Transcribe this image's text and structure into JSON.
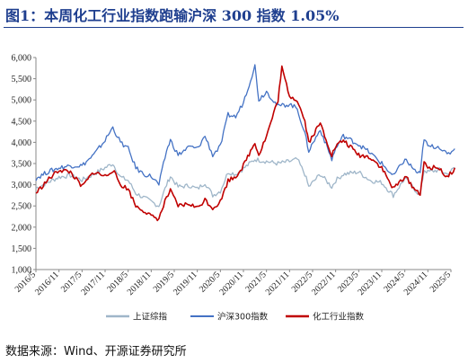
{
  "title": "图1：本周化工行业指数跑输沪深 300 指数 1.05%",
  "source": "数据来源：Wind、开源证券研究所",
  "chart_data": {
    "type": "line",
    "title": "图1：本周化工行业指数跑输沪深 300 指数 1.05%",
    "xlabel": "",
    "ylabel": "",
    "ylim": [
      1000,
      6000
    ],
    "yticks": [
      1000,
      1500,
      2000,
      2500,
      3000,
      3500,
      4000,
      4500,
      5000,
      5500,
      6000
    ],
    "ytick_labels": [
      "1,000",
      "1,500",
      "2,000",
      "2,500",
      "3,000",
      "3,500",
      "4,000",
      "4,500",
      "5,000",
      "5,500",
      "6,000"
    ],
    "xtick_labels": [
      "2016/5",
      "2016/11",
      "2017/5",
      "2017/11",
      "2018/5",
      "2018/11",
      "2019/5",
      "2019/11",
      "2020/5",
      "2020/11",
      "2021/5",
      "2021/11",
      "2022/5",
      "2022/11",
      "2023/5",
      "2023/11",
      "2024/5",
      "2024/11",
      "2025/5"
    ],
    "legend_position": "bottom",
    "grid": false,
    "series": [
      {
        "name": "上证综指",
        "color": "#9fb6c9",
        "points": [
          [
            "2016/5",
            2920
          ],
          [
            "2016/8",
            3050
          ],
          [
            "2016/11",
            3180
          ],
          [
            "2017/2",
            3220
          ],
          [
            "2017/5",
            3110
          ],
          [
            "2017/8",
            3250
          ],
          [
            "2017/11",
            3400
          ],
          [
            "2018/1",
            3500
          ],
          [
            "2018/3",
            3180
          ],
          [
            "2018/5",
            3100
          ],
          [
            "2018/7",
            2800
          ],
          [
            "2018/9",
            2700
          ],
          [
            "2018/11",
            2600
          ],
          [
            "2019/1",
            2500
          ],
          [
            "2019/3",
            3000
          ],
          [
            "2019/4",
            3200
          ],
          [
            "2019/6",
            2950
          ],
          [
            "2019/9",
            2980
          ],
          [
            "2019/11",
            2900
          ],
          [
            "2020/1",
            3050
          ],
          [
            "2020/3",
            2750
          ],
          [
            "2020/5",
            2850
          ],
          [
            "2020/7",
            3300
          ],
          [
            "2020/9",
            3250
          ],
          [
            "2020/11",
            3380
          ],
          [
            "2021/2",
            3600
          ],
          [
            "2021/5",
            3550
          ],
          [
            "2021/8",
            3500
          ],
          [
            "2021/11",
            3550
          ],
          [
            "2022/1",
            3600
          ],
          [
            "2022/3",
            3250
          ],
          [
            "2022/4",
            2950
          ],
          [
            "2022/7",
            3250
          ],
          [
            "2022/10",
            2950
          ],
          [
            "2022/11",
            3100
          ],
          [
            "2023/1",
            3250
          ],
          [
            "2023/5",
            3300
          ],
          [
            "2023/8",
            3100
          ],
          [
            "2023/11",
            3050
          ],
          [
            "2024/2",
            2750
          ],
          [
            "2024/5",
            3150
          ],
          [
            "2024/8",
            2850
          ],
          [
            "2024/9",
            2750
          ],
          [
            "2024/10",
            3350
          ],
          [
            "2024/11",
            3300
          ],
          [
            "2025/2",
            3350
          ],
          [
            "2025/4",
            3250
          ],
          [
            "2025/6",
            3400
          ]
        ]
      },
      {
        "name": "沪深300指数",
        "color": "#4472c4",
        "points": [
          [
            "2016/5",
            3150
          ],
          [
            "2016/8",
            3300
          ],
          [
            "2016/11",
            3400
          ],
          [
            "2017/2",
            3450
          ],
          [
            "2017/5",
            3450
          ],
          [
            "2017/8",
            3700
          ],
          [
            "2017/11",
            4050
          ],
          [
            "2018/1",
            4350
          ],
          [
            "2018/3",
            4000
          ],
          [
            "2018/5",
            3850
          ],
          [
            "2018/7",
            3400
          ],
          [
            "2018/9",
            3250
          ],
          [
            "2018/11",
            3200
          ],
          [
            "2019/1",
            3000
          ],
          [
            "2019/3",
            3800
          ],
          [
            "2019/4",
            4050
          ],
          [
            "2019/6",
            3700
          ],
          [
            "2019/9",
            3900
          ],
          [
            "2019/11",
            3850
          ],
          [
            "2020/1",
            4150
          ],
          [
            "2020/3",
            3700
          ],
          [
            "2020/5",
            3900
          ],
          [
            "2020/7",
            4650
          ],
          [
            "2020/9",
            4600
          ],
          [
            "2020/11",
            4950
          ],
          [
            "2021/2",
            5800
          ],
          [
            "2021/3",
            5000
          ],
          [
            "2021/5",
            5200
          ],
          [
            "2021/8",
            4850
          ],
          [
            "2021/11",
            4900
          ],
          [
            "2022/1",
            4800
          ],
          [
            "2022/3",
            4200
          ],
          [
            "2022/4",
            3800
          ],
          [
            "2022/7",
            4300
          ],
          [
            "2022/10",
            3600
          ],
          [
            "2022/11",
            3850
          ],
          [
            "2023/1",
            4150
          ],
          [
            "2023/5",
            3950
          ],
          [
            "2023/8",
            3750
          ],
          [
            "2023/11",
            3500
          ],
          [
            "2024/2",
            3200
          ],
          [
            "2024/5",
            3600
          ],
          [
            "2024/8",
            3300
          ],
          [
            "2024/9",
            3250
          ],
          [
            "2024/10",
            4100
          ],
          [
            "2024/11",
            3900
          ],
          [
            "2025/2",
            3900
          ],
          [
            "2025/4",
            3700
          ],
          [
            "2025/6",
            3850
          ]
        ]
      },
      {
        "name": "化工行业指数",
        "color": "#c00000",
        "points": [
          [
            "2016/5",
            2800
          ],
          [
            "2016/8",
            3100
          ],
          [
            "2016/11",
            3350
          ],
          [
            "2017/2",
            3300
          ],
          [
            "2017/5",
            2950
          ],
          [
            "2017/8",
            3300
          ],
          [
            "2017/11",
            3200
          ],
          [
            "2018/1",
            3350
          ],
          [
            "2018/3",
            3000
          ],
          [
            "2018/5",
            2900
          ],
          [
            "2018/7",
            2500
          ],
          [
            "2018/9",
            2400
          ],
          [
            "2018/11",
            2250
          ],
          [
            "2019/1",
            2200
          ],
          [
            "2019/3",
            2700
          ],
          [
            "2019/4",
            2850
          ],
          [
            "2019/6",
            2500
          ],
          [
            "2019/9",
            2550
          ],
          [
            "2019/11",
            2450
          ],
          [
            "2020/1",
            2650
          ],
          [
            "2020/3",
            2450
          ],
          [
            "2020/5",
            2600
          ],
          [
            "2020/7",
            3100
          ],
          [
            "2020/9",
            3200
          ],
          [
            "2020/11",
            3450
          ],
          [
            "2021/2",
            4000
          ],
          [
            "2021/3",
            3700
          ],
          [
            "2021/5",
            4150
          ],
          [
            "2021/8",
            5000
          ],
          [
            "2021/9",
            5750
          ],
          [
            "2021/11",
            5100
          ],
          [
            "2022/1",
            5000
          ],
          [
            "2022/3",
            4500
          ],
          [
            "2022/4",
            4000
          ],
          [
            "2022/7",
            4450
          ],
          [
            "2022/10",
            3700
          ],
          [
            "2022/11",
            3900
          ],
          [
            "2023/1",
            4050
          ],
          [
            "2023/5",
            3700
          ],
          [
            "2023/8",
            3650
          ],
          [
            "2023/11",
            3400
          ],
          [
            "2024/2",
            2900
          ],
          [
            "2024/5",
            3200
          ],
          [
            "2024/8",
            2850
          ],
          [
            "2024/9",
            2800
          ],
          [
            "2024/10",
            3500
          ],
          [
            "2024/11",
            3400
          ],
          [
            "2025/2",
            3400
          ],
          [
            "2025/4",
            3150
          ],
          [
            "2025/6",
            3400
          ]
        ]
      }
    ]
  }
}
